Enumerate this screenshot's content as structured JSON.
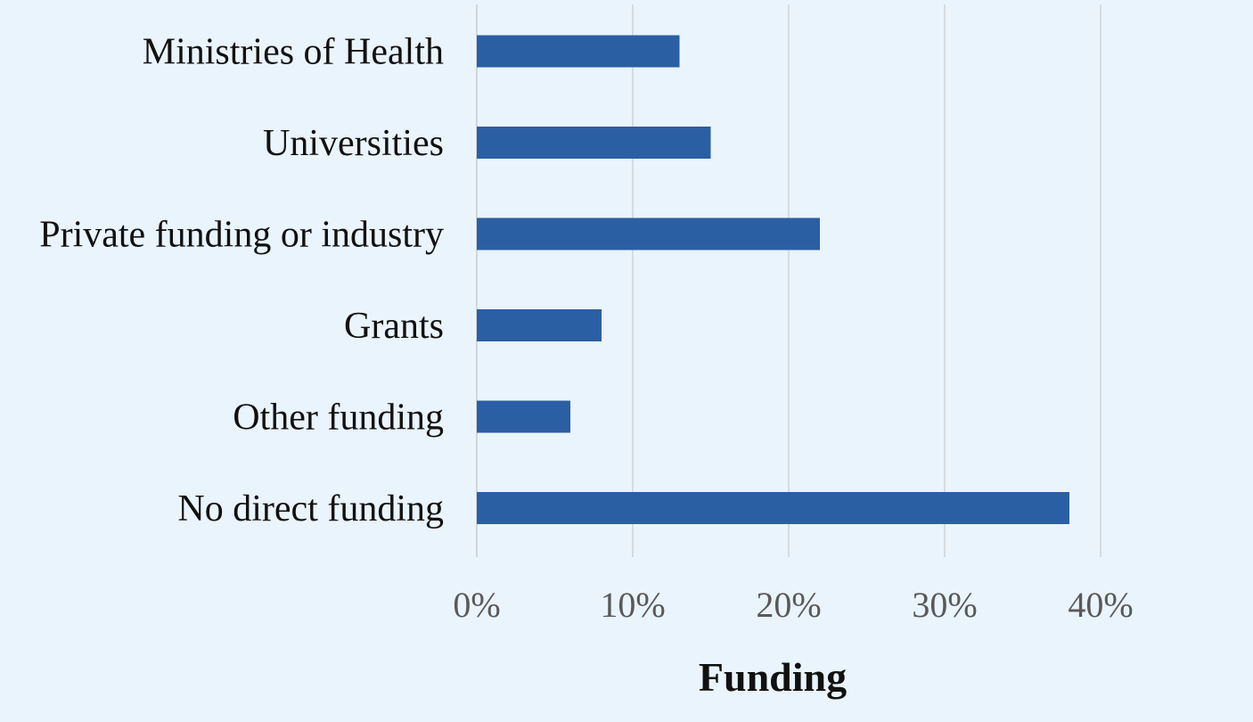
{
  "chart_data": {
    "type": "bar",
    "orientation": "horizontal",
    "categories": [
      "Ministries of Health",
      "Universities",
      "Private funding or industry",
      "Grants",
      "Other funding",
      "No direct funding"
    ],
    "values": [
      13,
      15,
      22,
      8,
      6,
      38
    ],
    "xlabel": "Funding",
    "ylabel": "",
    "title": "",
    "xlim": [
      0,
      40
    ],
    "ticks": [
      "0%",
      "10%",
      "20%",
      "30%",
      "40%"
    ],
    "grid": true,
    "colors": {
      "bar": "#2b5fa3",
      "background": "#eaf4fd"
    }
  }
}
